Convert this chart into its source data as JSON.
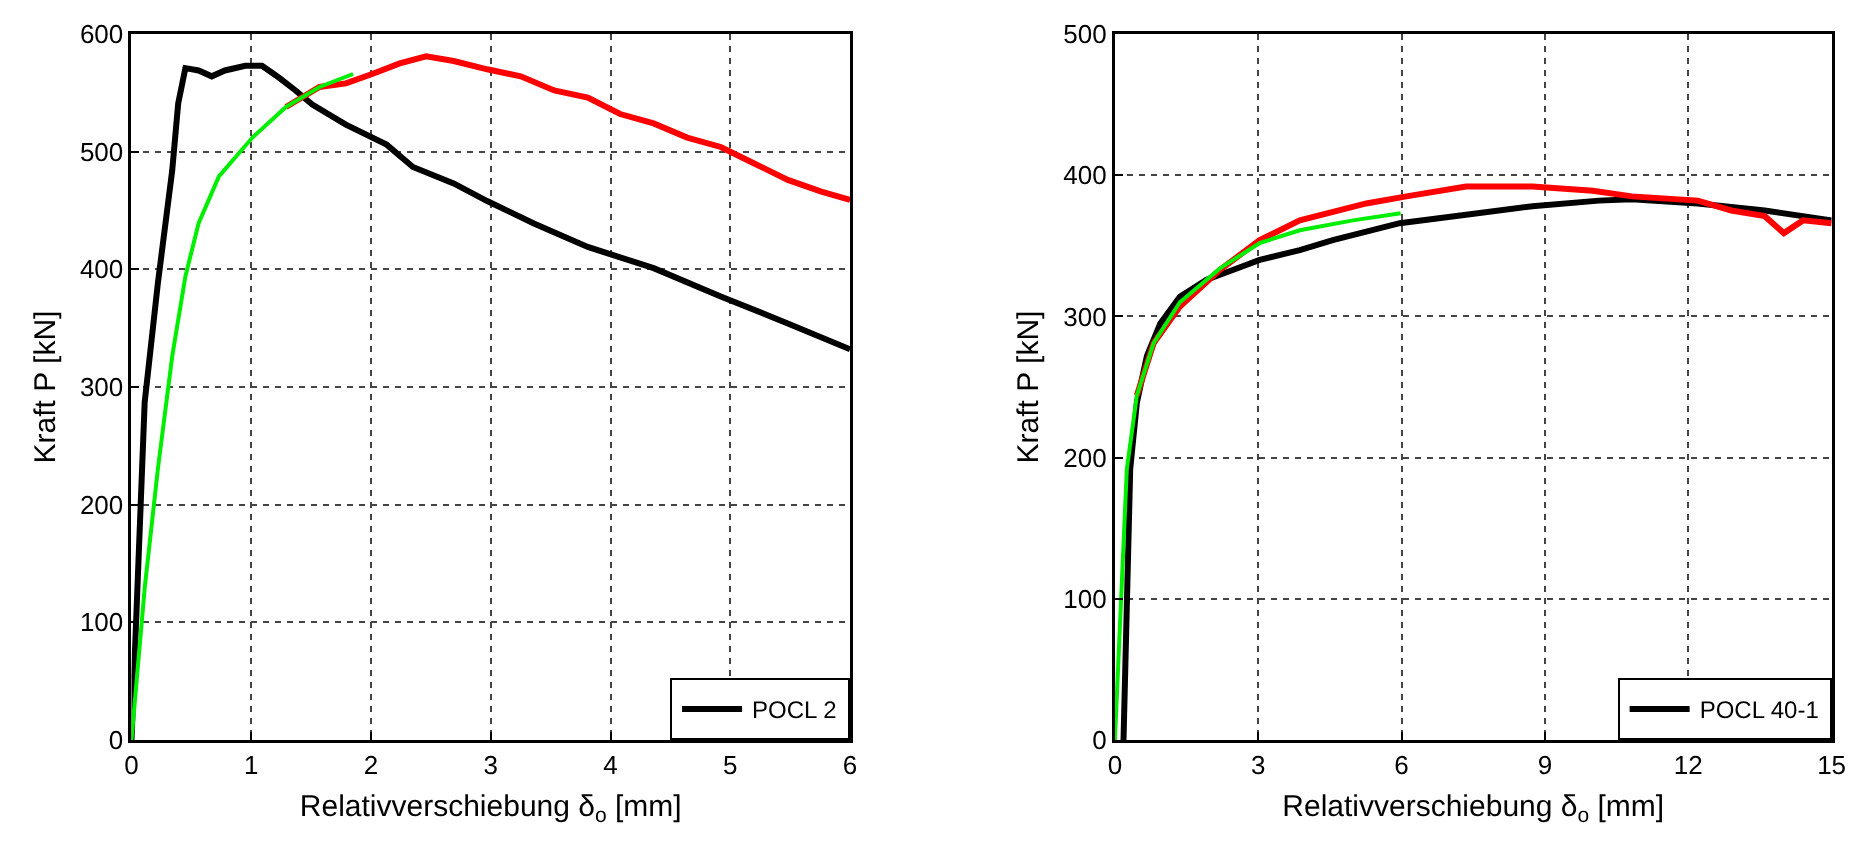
{
  "chart_data": [
    {
      "type": "line",
      "xlabel": "Relativverschiebung δ$_{o}$ [mm]",
      "ylabel": "Kraft P [kN]",
      "xlim": [
        0,
        6
      ],
      "xticks": [
        0,
        1,
        2,
        3,
        4,
        5,
        6
      ],
      "ylim": [
        0,
        600
      ],
      "yticks": [
        0,
        100,
        200,
        300,
        400,
        500,
        600
      ],
      "grid": true,
      "legend": "bottom right",
      "series": [
        {
          "name": "POCL 2",
          "color": "#000000",
          "x": [
            0,
            0.11,
            0.22,
            0.34,
            0.39,
            0.45,
            0.56,
            0.67,
            0.78,
            0.95,
            1.09,
            1.23,
            1.37,
            1.51,
            1.79,
            2.13,
            2.35,
            2.69,
            2.97,
            3.36,
            3.81,
            4.36,
            4.92,
            5.48,
            6.0
          ],
          "values": [
            0,
            287,
            388,
            484,
            541,
            571,
            569,
            564,
            569,
            573,
            573,
            563,
            552,
            540,
            523,
            506,
            487,
            473,
            458,
            439,
            419,
            401,
            377,
            354,
            332
          ]
        },
        {
          "color": "#ff0000",
          "x": [
            1.29,
            1.57,
            1.79,
            2.01,
            2.24,
            2.46,
            2.69,
            2.97,
            3.25,
            3.53,
            3.81,
            4.08,
            4.36,
            4.64,
            4.92,
            5.2,
            5.48,
            5.76,
            6.0
          ],
          "values": [
            538,
            555,
            558,
            566,
            575,
            581,
            577,
            570,
            564,
            552,
            546,
            532,
            524,
            512,
            504,
            490,
            476,
            466,
            459
          ]
        },
        {
          "color": "#00ee00",
          "x": [
            0,
            0.11,
            0.22,
            0.34,
            0.45,
            0.56,
            0.73,
            1.01,
            1.29,
            1.57,
            1.85
          ],
          "values": [
            0,
            129,
            230,
            326,
            394,
            439,
            479,
            512,
            538,
            555,
            566
          ]
        }
      ]
    },
    {
      "type": "line",
      "xlabel": "Relativverschiebung δ$_{o}$ [mm]",
      "ylabel": "Kraft P [kN]",
      "xlim": [
        0,
        15
      ],
      "xticks": [
        0,
        3,
        6,
        9,
        12,
        15
      ],
      "ylim": [
        0,
        500
      ],
      "yticks": [
        0,
        100,
        200,
        300,
        400,
        500
      ],
      "grid": true,
      "legend": "bottom right",
      "series": [
        {
          "name": "POCL 40-1",
          "color": "#000000",
          "x": [
            0.18,
            0.32,
            0.46,
            0.67,
            0.95,
            1.36,
            1.92,
            2.48,
            3.03,
            3.87,
            4.56,
            5.96,
            7.35,
            8.74,
            10.13,
            10.82,
            12.2,
            13.6,
            15
          ],
          "values": [
            0,
            192,
            239,
            272,
            295,
            314,
            326,
            333,
            340,
            347,
            354,
            366,
            372,
            378,
            382,
            383,
            380,
            375,
            368
          ]
        },
        {
          "color": "#ff0000",
          "x": [
            0.46,
            0.81,
            1.36,
            2.2,
            3.03,
            3.87,
            5.26,
            6.1,
            7.35,
            8.74,
            10,
            10.82,
            12.2,
            12.9,
            13.6,
            14.0,
            14.4,
            15
          ],
          "values": [
            244,
            281,
            307,
            333,
            354,
            368,
            380,
            385,
            392,
            392,
            389,
            385,
            382,
            375,
            371,
            359,
            368,
            366
          ]
        },
        {
          "color": "#00ee00",
          "x": [
            0,
            0.25,
            0.46,
            0.81,
            1.36,
            2.2,
            3.03,
            3.87,
            4.98,
            5.98
          ],
          "values": [
            0,
            192,
            244,
            281,
            310,
            334,
            352,
            361,
            368,
            373
          ]
        }
      ]
    }
  ]
}
